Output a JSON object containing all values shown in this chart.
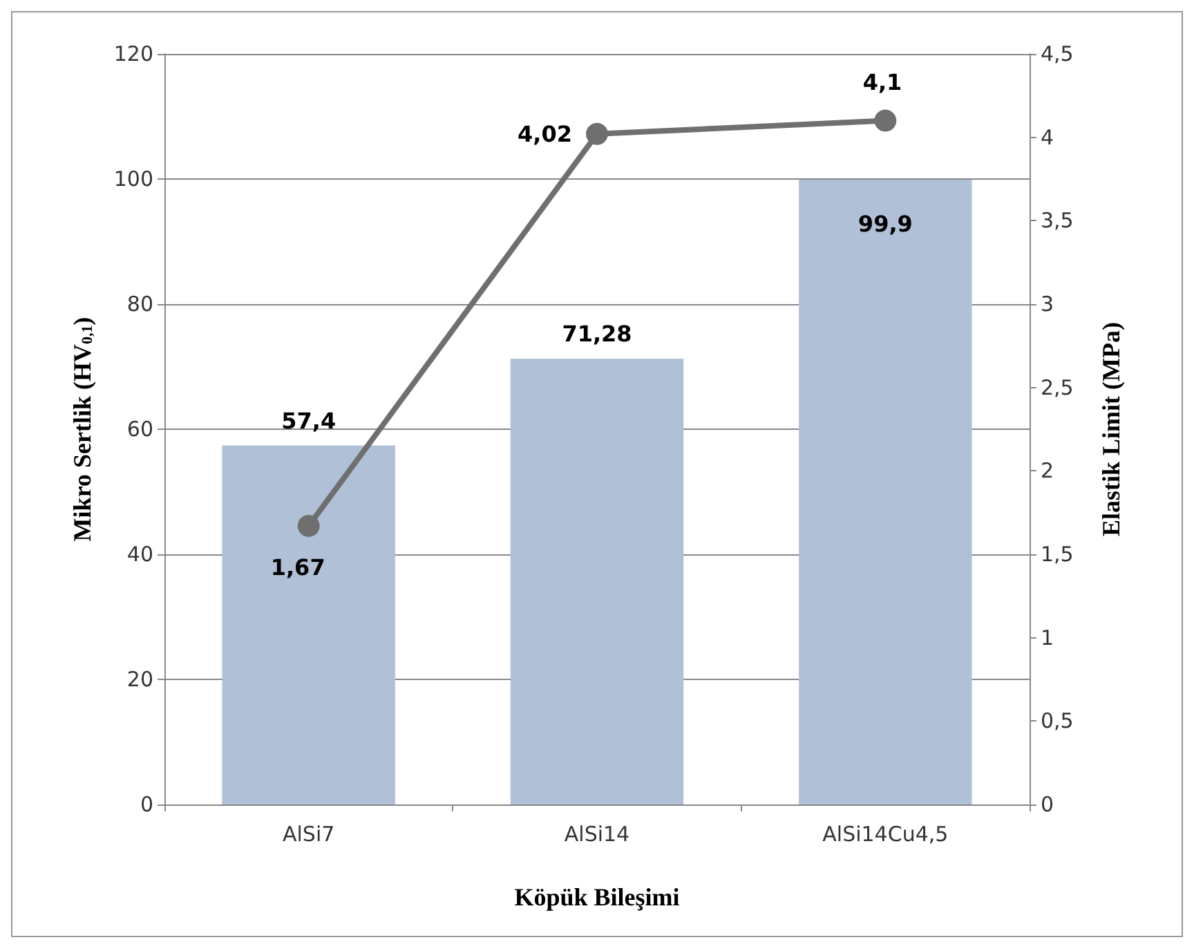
{
  "chart_data": {
    "type": "bar",
    "xlabel": "Köpük Bileşimi",
    "ylabel": "Mikro Sertlik (HV$_{0,1}$)",
    "y2label": "Elastik Limit (MPa)",
    "categories": [
      "AlSi7",
      "AlSi14",
      "AlSi14Cu4,5"
    ],
    "series": [
      {
        "color": "#b0c0d6",
        "values": [
          57.4,
          71.28,
          99.9
        ],
        "value_labels": [
          "57,4",
          "71,28",
          "99,9"
        ]
      },
      {
        "type": "line",
        "axis": "y2",
        "color": "#6f6f6f",
        "values": [
          1.67,
          4.02,
          4.1
        ],
        "value_labels": [
          "1,67",
          "4,02",
          "4,1"
        ],
        "marker": "circle"
      }
    ],
    "ylim": [
      0,
      120
    ],
    "yticks": [
      0,
      20,
      40,
      60,
      80,
      100,
      120
    ],
    "y2lim": [
      0,
      4.5
    ],
    "y2ticks": [
      0,
      {
        "value": 0.5,
        "label": "0,5"
      },
      1,
      {
        "value": 1.5,
        "label": "1,5"
      },
      2,
      {
        "value": 2.5,
        "label": "2,5"
      },
      3,
      {
        "value": 3.5,
        "label": "3,5"
      },
      4,
      {
        "value": 4.5,
        "label": "4,5"
      }
    ],
    "grid": "y"
  }
}
